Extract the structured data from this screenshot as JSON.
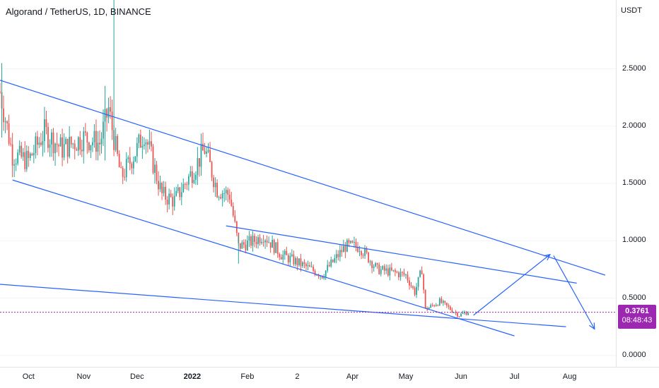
{
  "header": {
    "title": "Algorand / TetherUS, 1D, BINANCE",
    "currency": "USDT"
  },
  "colors": {
    "up": "#26a69a",
    "down": "#ef5350",
    "trendline": "#2962ff",
    "price_line": "#9c27b0",
    "badge": "#9c27b0"
  },
  "price_badge": {
    "price": "0.3761",
    "countdown": "08:48:43"
  },
  "chart_data": {
    "type": "candlestick",
    "title": "Algorand / TetherUS, 1D, BINANCE",
    "y_unit": "USDT",
    "ylim": [
      -0.1,
      3.1
    ],
    "y_ticks": [
      "2.5000",
      "2.0000",
      "1.5000",
      "1.0000",
      "0.5000",
      "0.0000"
    ],
    "y_tick_values": [
      2.5,
      2.0,
      1.5,
      1.0,
      0.5,
      0.0
    ],
    "x_ticks": [
      "Oct",
      "Nov",
      "Dec",
      "2022",
      "Feb",
      "2",
      "Apr",
      "May",
      "Jun",
      "Jul",
      "Aug"
    ],
    "x_tick_dates": [
      "2021-10-01",
      "2021-11-01",
      "2021-12-01",
      "2022-01-01",
      "2022-02-01",
      "2022-03-01",
      "2022-04-01",
      "2022-05-01",
      "2022-06-01",
      "2022-07-01",
      "2022-08-01"
    ],
    "x_range": [
      "2021-09-15",
      "2022-08-27"
    ],
    "last_price": 0.3761,
    "price_path": [
      {
        "date": "2021-09-15",
        "value": 2.3
      },
      {
        "date": "2021-09-22",
        "value": 1.75
      },
      {
        "date": "2021-10-01",
        "value": 1.7
      },
      {
        "date": "2021-10-10",
        "value": 1.95
      },
      {
        "date": "2021-10-20",
        "value": 1.8
      },
      {
        "date": "2021-11-01",
        "value": 1.9
      },
      {
        "date": "2021-11-10",
        "value": 1.85
      },
      {
        "date": "2021-11-15",
        "value": 2.15
      },
      {
        "date": "2021-11-22",
        "value": 1.55
      },
      {
        "date": "2021-12-01",
        "value": 1.8
      },
      {
        "date": "2021-12-05",
        "value": 1.95
      },
      {
        "date": "2021-12-15",
        "value": 1.4
      },
      {
        "date": "2021-12-22",
        "value": 1.35
      },
      {
        "date": "2022-01-01",
        "value": 1.6
      },
      {
        "date": "2022-01-08",
        "value": 1.8
      },
      {
        "date": "2022-01-15",
        "value": 1.45
      },
      {
        "date": "2022-01-22",
        "value": 1.4
      },
      {
        "date": "2022-01-27",
        "value": 0.95
      },
      {
        "date": "2022-02-05",
        "value": 1.0
      },
      {
        "date": "2022-02-10",
        "value": 1.05
      },
      {
        "date": "2022-02-20",
        "value": 0.88
      },
      {
        "date": "2022-03-05",
        "value": 0.78
      },
      {
        "date": "2022-03-15",
        "value": 0.7
      },
      {
        "date": "2022-03-28",
        "value": 0.95
      },
      {
        "date": "2022-04-05",
        "value": 0.95
      },
      {
        "date": "2022-04-15",
        "value": 0.75
      },
      {
        "date": "2022-04-25",
        "value": 0.72
      },
      {
        "date": "2022-05-01",
        "value": 0.7
      },
      {
        "date": "2022-05-06",
        "value": 0.55
      },
      {
        "date": "2022-05-10",
        "value": 0.75
      },
      {
        "date": "2022-05-12",
        "value": 0.4
      },
      {
        "date": "2022-05-20",
        "value": 0.47
      },
      {
        "date": "2022-05-31",
        "value": 0.35
      },
      {
        "date": "2022-06-05",
        "value": 0.38
      }
    ],
    "spikes": [
      {
        "date": "2021-11-18",
        "high": 3.1,
        "low": 1.85
      },
      {
        "date": "2021-11-13",
        "high": 2.35,
        "low": 1.7
      },
      {
        "date": "2021-09-16",
        "high": 2.55,
        "low": 1.9
      },
      {
        "date": "2022-01-27",
        "high": 1.05,
        "low": 0.8
      }
    ],
    "drawings": [
      {
        "name": "upper-channel-line",
        "from": {
          "date": "2021-09-15",
          "value": 2.4
        },
        "to": {
          "date": "2022-08-21",
          "value": 0.7
        }
      },
      {
        "name": "lower-channel-line",
        "from": {
          "date": "2021-09-22",
          "value": 1.53
        },
        "to": {
          "date": "2022-07-01",
          "value": 0.17
        }
      },
      {
        "name": "inner-upper-line",
        "from": {
          "date": "2022-01-20",
          "value": 1.13
        },
        "to": {
          "date": "2022-08-05",
          "value": 0.63
        }
      },
      {
        "name": "long-support-line",
        "from": {
          "date": "2021-09-15",
          "value": 0.62
        },
        "to": {
          "date": "2022-07-30",
          "value": 0.25
        }
      },
      {
        "name": "projection-up-arrow",
        "from": {
          "date": "2022-06-08",
          "value": 0.35
        },
        "to": {
          "date": "2022-07-21",
          "value": 0.88
        }
      },
      {
        "name": "projection-down-arrow",
        "from": {
          "date": "2022-07-23",
          "value": 0.87
        },
        "to": {
          "date": "2022-08-15",
          "value": 0.23
        }
      }
    ]
  }
}
